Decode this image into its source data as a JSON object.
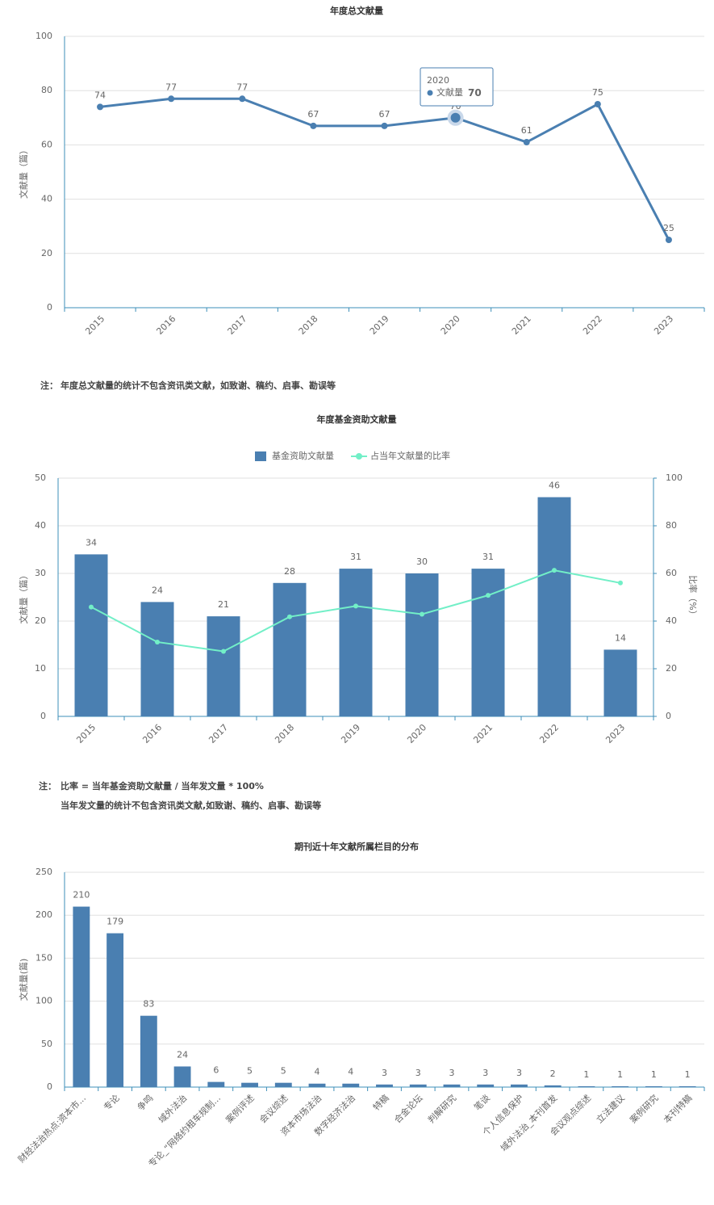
{
  "chart_data": [
    {
      "type": "line",
      "title": "年度总文献量",
      "y_label": "文献量（篇）",
      "categories": [
        "2015",
        "2016",
        "2017",
        "2018",
        "2019",
        "2020",
        "2021",
        "2022",
        "2023"
      ],
      "series": [
        {
          "name": "文献量",
          "type": "line",
          "color": "#4a7fb1",
          "values": [
            74,
            77,
            77,
            67,
            67,
            70,
            61,
            75,
            25
          ]
        }
      ],
      "data_labels": true,
      "ylim": [
        0,
        100
      ],
      "yticks": [
        0,
        20,
        40,
        60,
        80,
        100
      ],
      "grid": true
    },
    {
      "type": "combo",
      "title": "年度基金资助文献量",
      "y_label": "文献量（篇）",
      "y2_label": "比率（%）",
      "categories": [
        "2015",
        "2016",
        "2017",
        "2018",
        "2019",
        "2020",
        "2021",
        "2022",
        "2023"
      ],
      "series": [
        {
          "name": "基金资助文献量",
          "type": "bar",
          "color": "#4a7fb1",
          "data_labels": true,
          "values": [
            34,
            24,
            21,
            28,
            31,
            30,
            31,
            46,
            14
          ]
        },
        {
          "name": "占当年文献量的比率",
          "type": "line",
          "axis": "y2",
          "color": "#72efc7",
          "values": [
            45.9,
            31.2,
            27.3,
            41.8,
            46.3,
            42.9,
            50.8,
            61.3,
            56
          ]
        }
      ],
      "legend": "top",
      "ylim": [
        0,
        50
      ],
      "yticks": [
        0,
        10,
        20,
        30,
        40,
        50
      ],
      "y2lim": [
        0,
        100
      ],
      "y2ticks": [
        0,
        20,
        40,
        60,
        80,
        100
      ],
      "grid": true
    },
    {
      "type": "bar",
      "title": "期刊近十年文献所属栏目的分布",
      "y_label": "文献量(篇)",
      "categories": [
        "财经法治热点:资本市...",
        "专论",
        "争鸣",
        "域外法治",
        "专论_“网络约租车规制...",
        "案例评述",
        "会议综述",
        "资本市场法治",
        "数字经济法治",
        "特稿",
        "合金论坛",
        "判解研究",
        "笔谈",
        "个人信息保护",
        "域外法治_本刊首发",
        "会议观点综述",
        "立法建议",
        "案例研究",
        "本刊特稿"
      ],
      "values": [
        210,
        179,
        83,
        24,
        6,
        5,
        5,
        4,
        4,
        3,
        3,
        3,
        3,
        3,
        2,
        1,
        1,
        1,
        1
      ],
      "color": "#4a7fb1",
      "data_labels": true,
      "ylim": [
        0,
        250
      ],
      "yticks": [
        0,
        50,
        100,
        150,
        200,
        250
      ],
      "grid": true
    }
  ],
  "notes": [
    {
      "label": "注：",
      "lines": [
        "年度总文献量的统计不包含资讯类文献，如致谢、稿约、启事、勘误等"
      ]
    },
    {
      "label": "注：",
      "lines": [
        "比率 = 当年基金资助文献量 / 当年发文量 * 100%",
        "当年发文量的统计不包含资讯类文献,如致谢、稿约、启事、勘误等"
      ]
    }
  ]
}
